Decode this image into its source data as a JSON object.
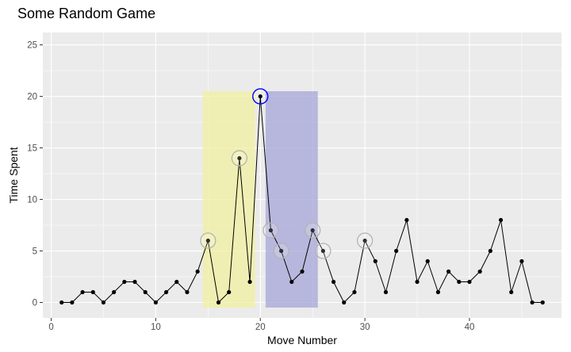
{
  "chart_data": {
    "type": "line",
    "title": "Some Random Game",
    "xlabel": "Move Number",
    "ylabel": "Time Spent",
    "xlim": [
      -0.8,
      48.8
    ],
    "ylim": [
      -1.5,
      26.2
    ],
    "x_ticks": [
      0,
      10,
      20,
      30,
      40
    ],
    "y_ticks": [
      0,
      5,
      10,
      15,
      20,
      25
    ],
    "grid": true,
    "legend": "none",
    "colors": {
      "panel_background": "#ebebeb",
      "grid_major": "#ffffff",
      "line": "#000000",
      "point": "#000000",
      "highlight_circle": "#b3b3b3",
      "max_circle": "#0000ff",
      "shade_before": "#f0f0a0",
      "shade_after": "#a5a5d8"
    },
    "series": [
      {
        "x": [
          1,
          2,
          3,
          4,
          5,
          6,
          7,
          8,
          9,
          10,
          11,
          12,
          13,
          14,
          15,
          16,
          17,
          18,
          19,
          20,
          21,
          22,
          23,
          24,
          25,
          26,
          27,
          28,
          29,
          30,
          31,
          32,
          33,
          34,
          35,
          36,
          37,
          38,
          39,
          40,
          41,
          42,
          43,
          44,
          45,
          46,
          47
        ],
        "values": [
          0,
          0,
          1,
          1,
          0,
          1,
          2,
          2,
          1,
          0,
          1,
          2,
          1,
          3,
          6,
          0,
          1,
          14,
          2,
          20,
          7,
          5,
          2,
          3,
          7,
          5,
          2,
          0,
          1,
          6,
          4,
          1,
          5,
          8,
          2,
          4,
          1,
          3,
          2,
          2,
          3,
          5,
          8,
          1,
          4,
          0,
          0
        ]
      }
    ],
    "highlighted_points": [
      15,
      18,
      21,
      22,
      25,
      26,
      30
    ],
    "max_point": 20,
    "shaded_ranges": [
      {
        "x": [
          14.5,
          19.5
        ],
        "y": [
          -0.5,
          20.5
        ],
        "color": "shade_before"
      },
      {
        "x": [
          20.5,
          25.5
        ],
        "y": [
          -0.5,
          20.5
        ],
        "color": "shade_after"
      }
    ]
  }
}
